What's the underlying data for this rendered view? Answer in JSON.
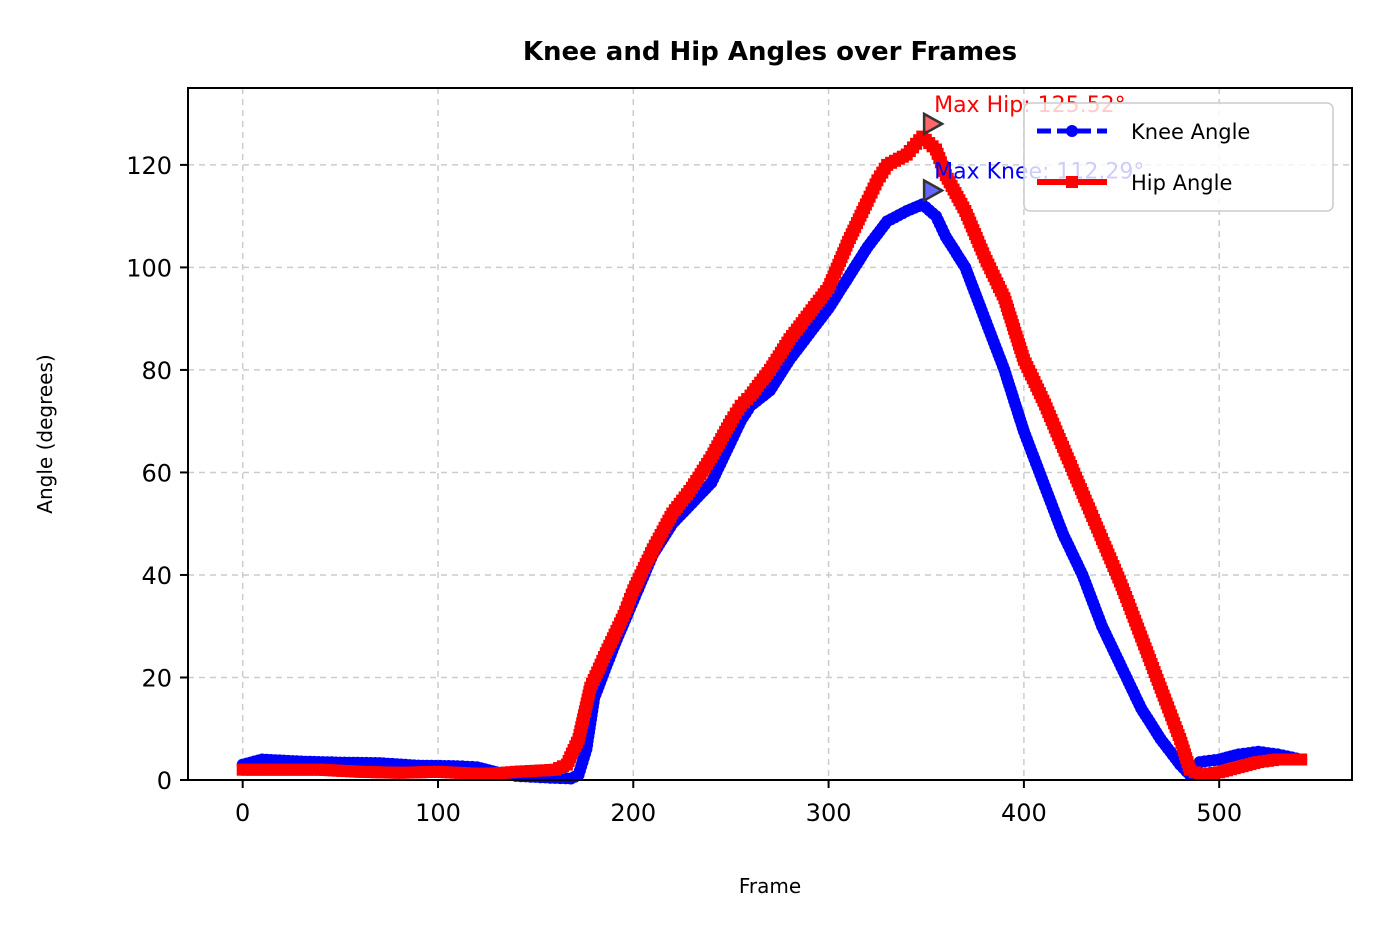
{
  "chart_data": {
    "type": "line",
    "title": "Knee and Hip Angles over Frames",
    "xlabel": "Frame",
    "ylabel": "Angle (degrees)",
    "xlim": [
      -28,
      568
    ],
    "ylim": [
      0,
      135
    ],
    "xticks": [
      0,
      100,
      200,
      300,
      400,
      500
    ],
    "yticks": [
      0,
      20,
      40,
      60,
      80,
      100,
      120
    ],
    "grid": true,
    "legend_position": "top-right",
    "series": [
      {
        "name": "Knee Angle",
        "color": "#0000ff",
        "linestyle": "dashed",
        "marker": "circle",
        "x": [
          0,
          10,
          30,
          50,
          70,
          90,
          110,
          120,
          130,
          140,
          150,
          160,
          168,
          172,
          176,
          180,
          190,
          200,
          210,
          220,
          230,
          240,
          250,
          255,
          260,
          270,
          280,
          290,
          300,
          310,
          320,
          330,
          340,
          348,
          355,
          360,
          370,
          380,
          390,
          400,
          410,
          420,
          430,
          440,
          450,
          460,
          470,
          480,
          485,
          490,
          500,
          510,
          520,
          530,
          542
        ],
        "values": [
          3,
          4,
          3.6,
          3.4,
          3.3,
          2.8,
          2.7,
          2.5,
          1.5,
          0.8,
          0.6,
          0.4,
          0.3,
          1,
          6,
          16,
          26,
          35,
          44,
          50,
          54,
          58,
          66,
          70,
          73,
          76,
          82,
          87,
          92,
          98,
          104,
          109,
          111,
          112.29,
          110,
          106,
          100,
          90,
          80,
          68,
          58,
          48,
          40,
          30,
          22,
          14,
          8,
          3,
          1,
          3.5,
          4,
          5,
          5.5,
          5,
          4
        ]
      },
      {
        "name": "Hip Angle",
        "color": "#ff0000",
        "linestyle": "solid",
        "marker": "square",
        "x": [
          0,
          20,
          40,
          60,
          80,
          100,
          120,
          130,
          140,
          150,
          160,
          166,
          172,
          178,
          185,
          195,
          200,
          210,
          220,
          230,
          240,
          250,
          255,
          260,
          270,
          280,
          290,
          300,
          310,
          320,
          325,
          330,
          340,
          348,
          355,
          360,
          370,
          380,
          390,
          400,
          410,
          420,
          430,
          440,
          450,
          460,
          470,
          480,
          485,
          490,
          500,
          510,
          520,
          530,
          542
        ],
        "values": [
          2,
          2,
          2,
          1.6,
          1.4,
          1.6,
          1.2,
          1.3,
          1.6,
          1.8,
          2,
          3,
          8,
          18,
          24,
          32,
          37,
          45,
          52,
          57,
          63,
          70,
          73,
          75,
          80,
          86,
          91,
          96,
          105,
          113,
          117,
          120,
          122,
          125.52,
          123,
          118,
          111,
          102,
          94,
          82,
          74,
          65,
          56,
          47,
          38,
          28,
          18,
          8,
          2,
          1,
          1.5,
          2.5,
          3.5,
          4,
          4
        ]
      }
    ],
    "annotations": [
      {
        "text": "Max Hip: 125.52°",
        "x": 353,
        "y": 128,
        "color": "#ff0000"
      },
      {
        "text": "Max Knee: 112.29°",
        "x": 353,
        "y": 115,
        "color": "#0000ff"
      }
    ]
  }
}
